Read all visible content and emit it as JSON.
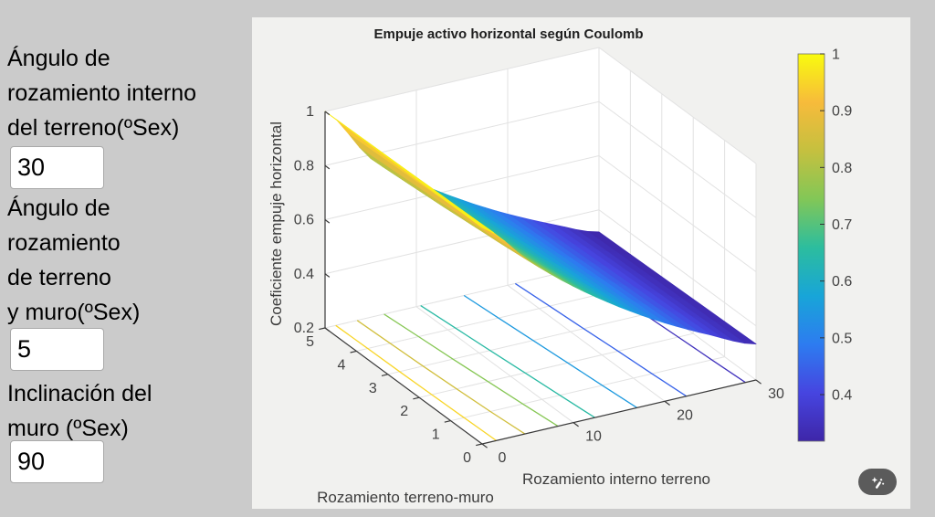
{
  "theme": {
    "page_bg": "#cbcbcb",
    "panel_bg": "#f1f1ef",
    "plot_bg": "#ffffff",
    "grid_color": "#e2e2e2",
    "axis_color": "#3a3a3a",
    "tick_text": "#424242",
    "label_text": "#3c3c3c",
    "title_text": "#1f1f1f",
    "input_border": "#a9a9a9",
    "button_bg": "#5b5b5b",
    "button_icon": "#ffffff",
    "colormap_low": "#3e26a8",
    "colormap_high": "#f9fb0e"
  },
  "controls": [
    {
      "label": "Ángulo de\nrozamiento interno\ndel terreno(ºSex)",
      "value": "30"
    },
    {
      "label": "Ángulo de\nrozamiento\nde terreno\ny muro(ºSex)",
      "value": "5"
    },
    {
      "label": "Inclinación del\nmuro (ºSex)",
      "value": "90"
    }
  ],
  "figure": {
    "toolbar_button": "axes-interactions-wand"
  },
  "chart_data": {
    "type": "surface",
    "title": "Empuje activo horizontal según Coulomb",
    "xlabel": "Rozamiento interno terreno",
    "ylabel": "Rozamiento terreno-muro",
    "zlabel": "Coeficiente empuje horizontal",
    "x": [
      0,
      5,
      10,
      15,
      20,
      25,
      30
    ],
    "y": [
      0,
      1,
      2,
      3,
      4,
      5
    ],
    "z": [
      [
        1.0,
        0.84,
        0.704,
        0.589,
        0.49,
        0.406,
        0.333
      ],
      [
        1.0,
        0.827,
        0.694,
        0.581,
        0.484,
        0.401,
        0.33
      ],
      [
        1.0,
        0.816,
        0.685,
        0.574,
        0.479,
        0.397,
        0.327
      ],
      [
        1.0,
        0.805,
        0.676,
        0.567,
        0.473,
        0.393,
        0.324
      ],
      [
        1.0,
        0.796,
        0.668,
        0.56,
        0.468,
        0.389,
        0.321
      ],
      [
        1.0,
        0.787,
        0.66,
        0.554,
        0.463,
        0.385,
        0.318
      ]
    ],
    "xlim": [
      0,
      30
    ],
    "ylim": [
      0,
      5
    ],
    "zlim": [
      0.2,
      1
    ],
    "xticks": [
      0,
      10,
      20,
      30
    ],
    "yticks": [
      0,
      1,
      2,
      3,
      4,
      5
    ],
    "zticks": [
      0.2,
      0.4,
      0.6,
      0.8,
      1
    ],
    "caxis": [
      0.318,
      1
    ],
    "colormap": "parula",
    "contour_levels": [
      0.35,
      0.45,
      0.55,
      0.65,
      0.75,
      0.85,
      0.95
    ],
    "colorbar_ticks": [
      0.4,
      0.5,
      0.6,
      0.7,
      0.8,
      0.9,
      1
    ],
    "grid": true,
    "view": {
      "azimuth": -37.5,
      "elevation": 30
    },
    "legend_position": "colorbar-right"
  }
}
